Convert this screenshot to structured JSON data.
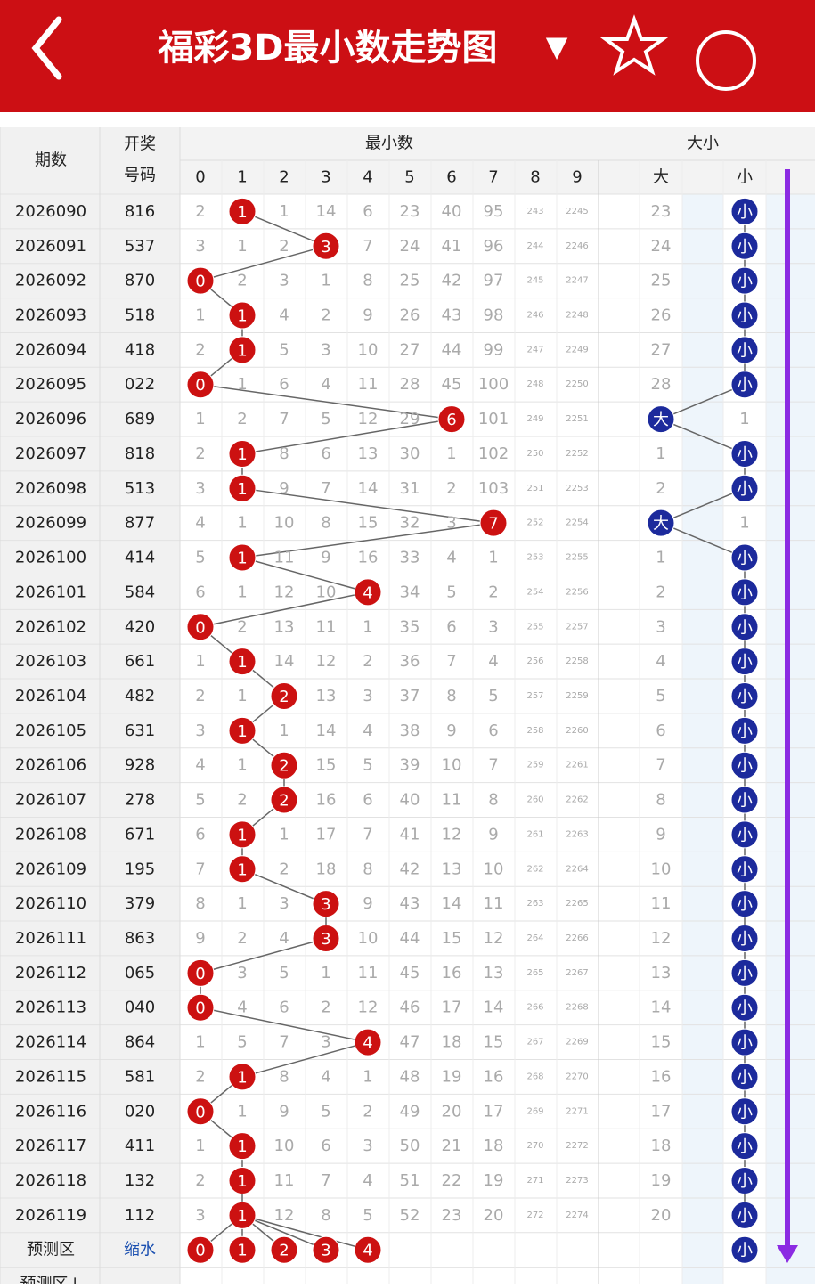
{
  "header": {
    "title": "福彩3D最小数走势图",
    "dropdown": "▼"
  },
  "table": {
    "col_issue": "期数",
    "col_number": [
      "开奖",
      "号码"
    ],
    "group_min": "最小数",
    "group_size": "大小",
    "digits": [
      0,
      1,
      2,
      3,
      4,
      5,
      6,
      7,
      8,
      9
    ],
    "size_labels": [
      "大",
      "小"
    ],
    "rows": [
      {
        "issue": "2026090",
        "number": "816",
        "cells": [
          2,
          null,
          1,
          14,
          6,
          23,
          40,
          95,
          243,
          2245
        ],
        "min": 1,
        "size_cells": [
          23,
          null
        ],
        "size": "小"
      },
      {
        "issue": "2026091",
        "number": "537",
        "cells": [
          3,
          1,
          2,
          null,
          7,
          24,
          41,
          96,
          244,
          2246
        ],
        "min": 3,
        "size_cells": [
          24,
          null
        ],
        "size": "小"
      },
      {
        "issue": "2026092",
        "number": "870",
        "cells": [
          null,
          2,
          3,
          1,
          8,
          25,
          42,
          97,
          245,
          2247
        ],
        "min": 0,
        "size_cells": [
          25,
          null
        ],
        "size": "小"
      },
      {
        "issue": "2026093",
        "number": "518",
        "cells": [
          1,
          null,
          4,
          2,
          9,
          26,
          43,
          98,
          246,
          2248
        ],
        "min": 1,
        "size_cells": [
          26,
          null
        ],
        "size": "小"
      },
      {
        "issue": "2026094",
        "number": "418",
        "cells": [
          2,
          null,
          5,
          3,
          10,
          27,
          44,
          99,
          247,
          2249
        ],
        "min": 1,
        "size_cells": [
          27,
          null
        ],
        "size": "小"
      },
      {
        "issue": "2026095",
        "number": "022",
        "cells": [
          null,
          1,
          6,
          4,
          11,
          28,
          45,
          100,
          248,
          2250
        ],
        "min": 0,
        "size_cells": [
          28,
          null
        ],
        "size": "小"
      },
      {
        "issue": "2026096",
        "number": "689",
        "cells": [
          1,
          2,
          7,
          5,
          12,
          29,
          null,
          101,
          249,
          2251
        ],
        "min": 6,
        "size_cells": [
          null,
          1
        ],
        "size": "大"
      },
      {
        "issue": "2026097",
        "number": "818",
        "cells": [
          2,
          null,
          8,
          6,
          13,
          30,
          1,
          102,
          250,
          2252
        ],
        "min": 1,
        "size_cells": [
          1,
          null
        ],
        "size": "小"
      },
      {
        "issue": "2026098",
        "number": "513",
        "cells": [
          3,
          null,
          9,
          7,
          14,
          31,
          2,
          103,
          251,
          2253
        ],
        "min": 1,
        "size_cells": [
          2,
          null
        ],
        "size": "小"
      },
      {
        "issue": "2026099",
        "number": "877",
        "cells": [
          4,
          1,
          10,
          8,
          15,
          32,
          3,
          null,
          252,
          2254
        ],
        "min": 7,
        "size_cells": [
          null,
          1
        ],
        "size": "大"
      },
      {
        "issue": "2026100",
        "number": "414",
        "cells": [
          5,
          null,
          11,
          9,
          16,
          33,
          4,
          1,
          253,
          2255
        ],
        "min": 1,
        "size_cells": [
          1,
          null
        ],
        "size": "小"
      },
      {
        "issue": "2026101",
        "number": "584",
        "cells": [
          6,
          1,
          12,
          10,
          null,
          34,
          5,
          2,
          254,
          2256
        ],
        "min": 4,
        "size_cells": [
          2,
          null
        ],
        "size": "小"
      },
      {
        "issue": "2026102",
        "number": "420",
        "cells": [
          null,
          2,
          13,
          11,
          1,
          35,
          6,
          3,
          255,
          2257
        ],
        "min": 0,
        "size_cells": [
          3,
          null
        ],
        "size": "小"
      },
      {
        "issue": "2026103",
        "number": "661",
        "cells": [
          1,
          null,
          14,
          12,
          2,
          36,
          7,
          4,
          256,
          2258
        ],
        "min": 1,
        "size_cells": [
          4,
          null
        ],
        "size": "小"
      },
      {
        "issue": "2026104",
        "number": "482",
        "cells": [
          2,
          1,
          null,
          13,
          3,
          37,
          8,
          5,
          257,
          2259
        ],
        "min": 2,
        "size_cells": [
          5,
          null
        ],
        "size": "小"
      },
      {
        "issue": "2026105",
        "number": "631",
        "cells": [
          3,
          null,
          1,
          14,
          4,
          38,
          9,
          6,
          258,
          2260
        ],
        "min": 1,
        "size_cells": [
          6,
          null
        ],
        "size": "小"
      },
      {
        "issue": "2026106",
        "number": "928",
        "cells": [
          4,
          1,
          null,
          15,
          5,
          39,
          10,
          7,
          259,
          2261
        ],
        "min": 2,
        "size_cells": [
          7,
          null
        ],
        "size": "小"
      },
      {
        "issue": "2026107",
        "number": "278",
        "cells": [
          5,
          2,
          null,
          16,
          6,
          40,
          11,
          8,
          260,
          2262
        ],
        "min": 2,
        "size_cells": [
          8,
          null
        ],
        "size": "小"
      },
      {
        "issue": "2026108",
        "number": "671",
        "cells": [
          6,
          null,
          1,
          17,
          7,
          41,
          12,
          9,
          261,
          2263
        ],
        "min": 1,
        "size_cells": [
          9,
          null
        ],
        "size": "小"
      },
      {
        "issue": "2026109",
        "number": "195",
        "cells": [
          7,
          null,
          2,
          18,
          8,
          42,
          13,
          10,
          262,
          2264
        ],
        "min": 1,
        "size_cells": [
          10,
          null
        ],
        "size": "小"
      },
      {
        "issue": "2026110",
        "number": "379",
        "cells": [
          8,
          1,
          3,
          null,
          9,
          43,
          14,
          11,
          263,
          2265
        ],
        "min": 3,
        "size_cells": [
          11,
          null
        ],
        "size": "小"
      },
      {
        "issue": "2026111",
        "number": "863",
        "cells": [
          9,
          2,
          4,
          null,
          10,
          44,
          15,
          12,
          264,
          2266
        ],
        "min": 3,
        "size_cells": [
          12,
          null
        ],
        "size": "小"
      },
      {
        "issue": "2026112",
        "number": "065",
        "cells": [
          null,
          3,
          5,
          1,
          11,
          45,
          16,
          13,
          265,
          2267
        ],
        "min": 0,
        "size_cells": [
          13,
          null
        ],
        "size": "小"
      },
      {
        "issue": "2026113",
        "number": "040",
        "cells": [
          null,
          4,
          6,
          2,
          12,
          46,
          17,
          14,
          266,
          2268
        ],
        "min": 0,
        "size_cells": [
          14,
          null
        ],
        "size": "小"
      },
      {
        "issue": "2026114",
        "number": "864",
        "cells": [
          1,
          5,
          7,
          3,
          null,
          47,
          18,
          15,
          267,
          2269
        ],
        "min": 4,
        "size_cells": [
          15,
          null
        ],
        "size": "小"
      },
      {
        "issue": "2026115",
        "number": "581",
        "cells": [
          2,
          null,
          8,
          4,
          1,
          48,
          19,
          16,
          268,
          2270
        ],
        "min": 1,
        "size_cells": [
          16,
          null
        ],
        "size": "小"
      },
      {
        "issue": "2026116",
        "number": "020",
        "cells": [
          null,
          1,
          9,
          5,
          2,
          49,
          20,
          17,
          269,
          2271
        ],
        "min": 0,
        "size_cells": [
          17,
          null
        ],
        "size": "小"
      },
      {
        "issue": "2026117",
        "number": "411",
        "cells": [
          1,
          null,
          10,
          6,
          3,
          50,
          21,
          18,
          270,
          2272
        ],
        "min": 1,
        "size_cells": [
          18,
          null
        ],
        "size": "小"
      },
      {
        "issue": "2026118",
        "number": "132",
        "cells": [
          2,
          null,
          11,
          7,
          4,
          51,
          22,
          19,
          271,
          2273
        ],
        "min": 1,
        "size_cells": [
          19,
          null
        ],
        "size": "小"
      },
      {
        "issue": "2026119",
        "number": "112",
        "cells": [
          3,
          null,
          12,
          8,
          5,
          52,
          23,
          20,
          272,
          2274
        ],
        "min": 1,
        "size_cells": [
          20,
          null
        ],
        "size": "小"
      }
    ],
    "prediction": {
      "label": "预测区",
      "method": "缩水",
      "digits": [
        0,
        1,
        2,
        3,
        4
      ],
      "size": "小"
    },
    "next_label": "预测区↓"
  }
}
